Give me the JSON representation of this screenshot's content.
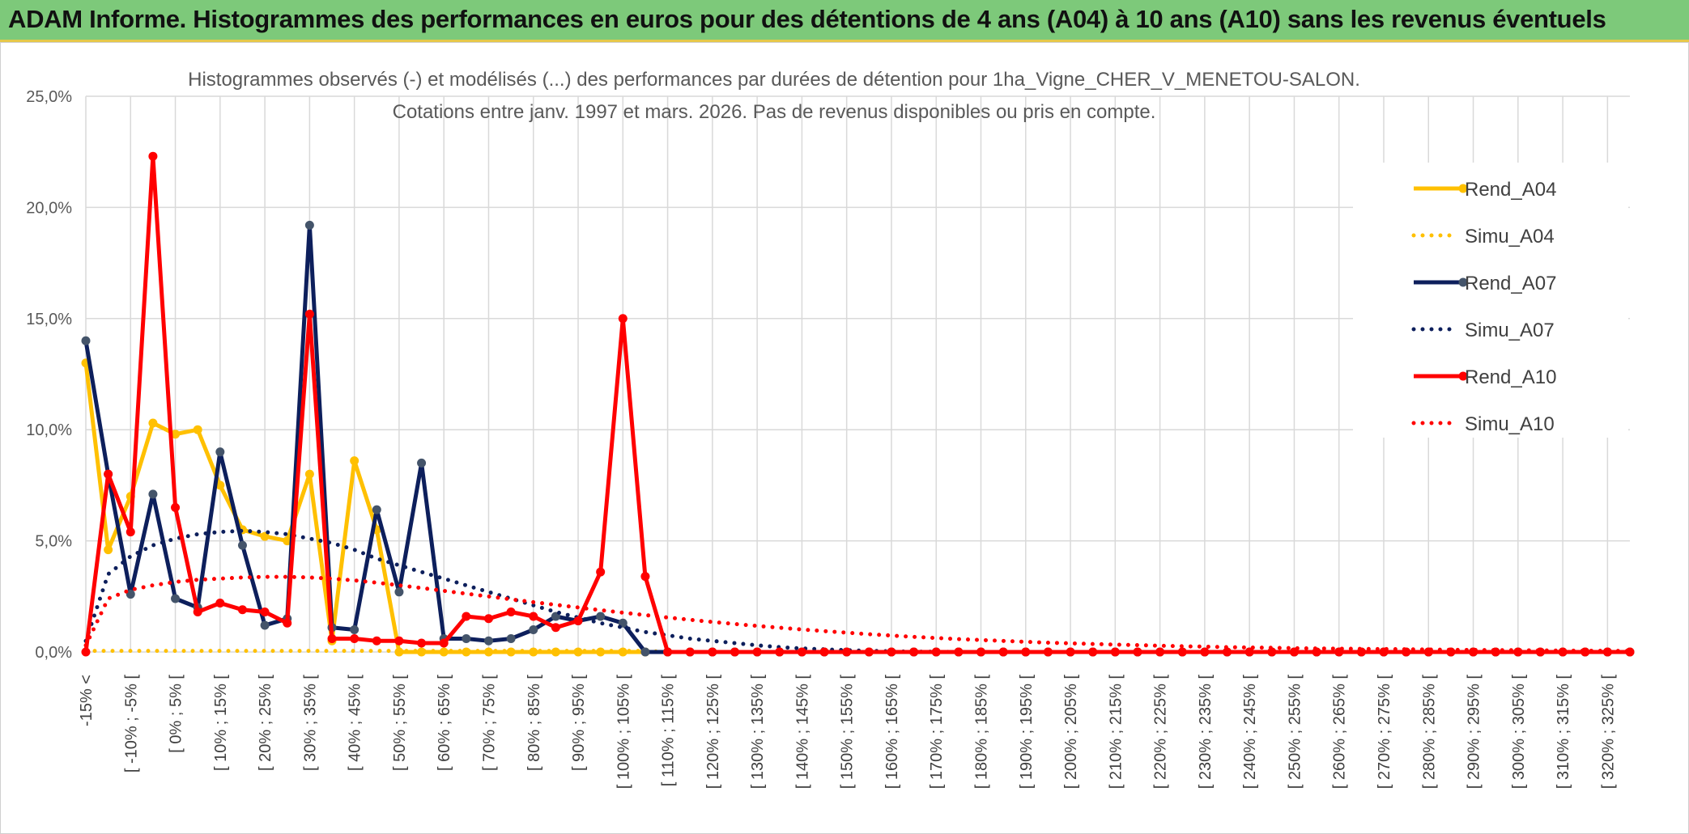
{
  "banner": {
    "title": "ADAM Informe. Histogrammes des performances en euros pour des détentions de 4 ans (A04) à 10 ans (A10) sans les revenus éventuels"
  },
  "colors": {
    "banner_bg": "#7dc97a",
    "a04": "#ffc000",
    "a07": "#0d1f5c",
    "a07_marker": "#44546a",
    "a10": "#ff0000",
    "grid": "#d9d9d9"
  },
  "chart_data": {
    "type": "line",
    "title_line1": "Histogrammes observés (-) et modélisés (...) des performances par durées de détention pour 1ha_Vigne_CHER_V_MENETOU-SALON.",
    "title_line2": "Cotations entre janv. 1997 et mars. 2026. Pas de revenus disponibles ou pris en compte.",
    "ylim": [
      0,
      25
    ],
    "yticks": [
      "0,0%",
      "5,0%",
      "10,0%",
      "15,0%",
      "20,0%",
      "25,0%"
    ],
    "grid": true,
    "legend_position": "right",
    "x_labels": [
      "-15% <",
      "[ -10% ; -5% [",
      "[ 0% ; 5% [",
      "[ 10% ; 15% [",
      "[ 20% ; 25% [",
      "[ 30% ; 35% [",
      "[ 40% ; 45% [",
      "[ 50% ; 55% [",
      "[ 60% ; 65% [",
      "[ 70% ; 75% [",
      "[ 80% ; 85% [",
      "[ 90% ; 95% [",
      "[ 100% ; 105% [",
      "[ 110% ; 115% [",
      "[ 120% ; 125% [",
      "[ 130% ; 135% [",
      "[ 140% ; 145% [",
      "[ 150% ; 155% [",
      "[ 160% ; 165% [",
      "[ 170% ; 175% [",
      "[ 180% ; 185% [",
      "[ 190% ; 195% [",
      "[ 200% ; 205% [",
      "[ 210% ; 215% [",
      "[ 220% ; 225% [",
      "[ 230% ; 235% [",
      "[ 240% ; 245% [",
      "[ 250% ; 255% [",
      "[ 260% ; 265% [",
      "[ 270% ; 275% [",
      "[ 280% ; 285% [",
      "[ 290% ; 295% [",
      "[ 300% ; 305% [",
      "[ 310% ; 315% [",
      "[ 320% ; 325% ["
    ],
    "series": [
      {
        "name": "Rend_A04",
        "style": "solid",
        "color": "#ffc000",
        "values": [
          13.0,
          4.6,
          7.0,
          10.3,
          9.8,
          10.0,
          7.5,
          5.5,
          5.2,
          5.0,
          8.0,
          0.5,
          8.6,
          5.5,
          0.0,
          0.0,
          0.0,
          0.0,
          0.0,
          0.0,
          0.0,
          0.0,
          0.0,
          0.0,
          0.0,
          0.0,
          0.0,
          0.0,
          0.0,
          0.0,
          0.0,
          0.0,
          0.0,
          0.0,
          0.0,
          0.0,
          0.0,
          0.0,
          0.0,
          0.0,
          0.0,
          0.0,
          0.0,
          0.0,
          0.0,
          0.0,
          0.0,
          0.0,
          0.0,
          0.0,
          0.0,
          0.0,
          0.0,
          0.0,
          0.0,
          0.0,
          0.0,
          0.0,
          0.0,
          0.0,
          0.0,
          0.0,
          0.0,
          0.0,
          0.0,
          0.0,
          0.0,
          0.0,
          0.0,
          0.0
        ]
      },
      {
        "name": "Simu_A04",
        "style": "dotted",
        "color": "#ffc000",
        "values": [
          0.05,
          0.05,
          0.05,
          0.05,
          0.05,
          0.05,
          0.05,
          0.05,
          0.05,
          0.05,
          0.05,
          0.05,
          0.05,
          0.05,
          0.05,
          0.05,
          0.05,
          0.05,
          0.05,
          0.05,
          0.05,
          0.05,
          0.05,
          0.05,
          0.05,
          0.05,
          0.0,
          0.0,
          0.0,
          0.0,
          0.0,
          0.0,
          0.0,
          0.0,
          0.0,
          0.0,
          0.0,
          0.0,
          0.0,
          0.0,
          0.0,
          0.0,
          0.0,
          0.0,
          0.0,
          0.0,
          0.0,
          0.0,
          0.0,
          0.0,
          0.0,
          0.0,
          0.0,
          0.0,
          0.0,
          0.0,
          0.0,
          0.0,
          0.0,
          0.0,
          0.0,
          0.0,
          0.0,
          0.0,
          0.0,
          0.0,
          0.0,
          0.0,
          0.0,
          0.0
        ]
      },
      {
        "name": "Rend_A07",
        "style": "solid",
        "color": "#0d1f5c",
        "values": [
          14.0,
          8.0,
          2.6,
          7.1,
          2.4,
          2.0,
          9.0,
          4.8,
          1.2,
          1.5,
          19.2,
          1.1,
          1.0,
          6.4,
          2.7,
          8.5,
          0.6,
          0.6,
          0.5,
          0.6,
          1.0,
          1.6,
          1.4,
          1.6,
          1.3,
          0.0,
          0.0,
          0.0,
          0.0,
          0.0,
          0.0,
          0.0,
          0.0,
          0.0,
          0.0,
          0.0,
          0.0,
          0.0,
          0.0,
          0.0,
          0.0,
          0.0,
          0.0,
          0.0,
          0.0,
          0.0,
          0.0,
          0.0,
          0.0,
          0.0,
          0.0,
          0.0,
          0.0,
          0.0,
          0.0,
          0.0,
          0.0,
          0.0,
          0.0,
          0.0,
          0.0,
          0.0,
          0.0,
          0.0,
          0.0,
          0.0,
          0.0,
          0.0,
          0.0,
          0.0
        ]
      },
      {
        "name": "Simu_A07",
        "style": "dotted",
        "color": "#0d1f5c",
        "values": [
          0.5,
          3.5,
          4.3,
          4.8,
          5.1,
          5.3,
          5.4,
          5.45,
          5.4,
          5.3,
          5.1,
          4.9,
          4.6,
          4.2,
          3.9,
          3.6,
          3.3,
          3.0,
          2.7,
          2.4,
          2.1,
          1.8,
          1.55,
          1.3,
          1.1,
          0.9,
          0.75,
          0.6,
          0.5,
          0.4,
          0.3,
          0.22,
          0.16,
          0.12,
          0.08,
          0.05,
          0.03,
          0.02,
          0.01,
          0.0,
          0.0,
          0.0,
          0.0,
          0.0,
          0.0,
          0.0,
          0.0,
          0.0,
          0.0,
          0.0,
          0.0,
          0.0,
          0.0,
          0.0,
          0.0,
          0.0,
          0.0,
          0.0,
          0.0,
          0.0,
          0.0,
          0.0,
          0.0,
          0.0,
          0.0,
          0.0,
          0.0,
          0.0,
          0.0,
          0.0
        ]
      },
      {
        "name": "Rend_A10",
        "style": "solid",
        "color": "#ff0000",
        "values": [
          0.0,
          8.0,
          5.4,
          22.3,
          6.5,
          1.8,
          2.2,
          1.9,
          1.8,
          1.3,
          15.2,
          0.6,
          0.6,
          0.5,
          0.5,
          0.4,
          0.4,
          1.6,
          1.5,
          1.8,
          1.6,
          1.1,
          1.4,
          3.6,
          15.0,
          3.4,
          0.0,
          0.0,
          0.0,
          0.0,
          0.0,
          0.0,
          0.0,
          0.0,
          0.0,
          0.0,
          0.0,
          0.0,
          0.0,
          0.0,
          0.0,
          0.0,
          0.0,
          0.0,
          0.0,
          0.0,
          0.0,
          0.0,
          0.0,
          0.0,
          0.0,
          0.0,
          0.0,
          0.0,
          0.0,
          0.0,
          0.0,
          0.0,
          0.0,
          0.0,
          0.0,
          0.0,
          0.0,
          0.0,
          0.0,
          0.0,
          0.0,
          0.0,
          0.0,
          0.0
        ]
      },
      {
        "name": "Simu_A10",
        "style": "dotted",
        "color": "#ff0000",
        "values": [
          0.3,
          2.4,
          2.8,
          3.0,
          3.15,
          3.25,
          3.3,
          3.35,
          3.38,
          3.38,
          3.35,
          3.3,
          3.22,
          3.12,
          3.0,
          2.88,
          2.75,
          2.62,
          2.5,
          2.37,
          2.24,
          2.12,
          2.0,
          1.88,
          1.77,
          1.66,
          1.55,
          1.45,
          1.35,
          1.26,
          1.17,
          1.09,
          1.01,
          0.94,
          0.87,
          0.8,
          0.74,
          0.68,
          0.63,
          0.58,
          0.54,
          0.5,
          0.46,
          0.42,
          0.39,
          0.36,
          0.33,
          0.31,
          0.28,
          0.26,
          0.24,
          0.22,
          0.2,
          0.19,
          0.17,
          0.16,
          0.15,
          0.14,
          0.13,
          0.12,
          0.11,
          0.1,
          0.09,
          0.08,
          0.08,
          0.07,
          0.06,
          0.06,
          0.05,
          0.05
        ]
      }
    ]
  }
}
